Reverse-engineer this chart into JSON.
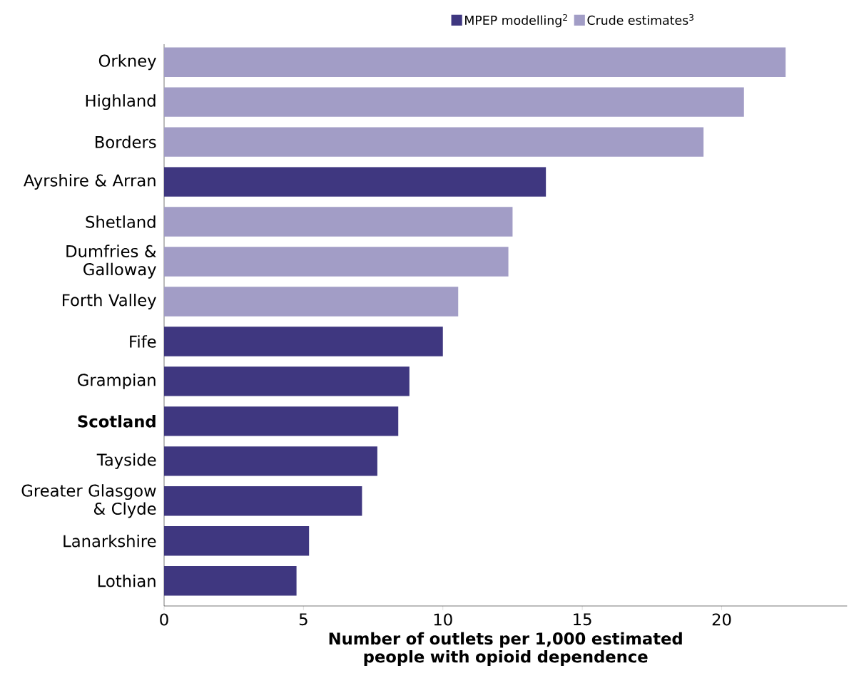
{
  "chart_data": {
    "type": "bar",
    "orientation": "horizontal",
    "categories": [
      "Orkney",
      "Highland",
      "Borders",
      "Ayrshire & Arran",
      "Shetland",
      "Dumfries & Galloway",
      "Forth Valley",
      "Fife",
      "Grampian",
      "**Scotland**",
      "Tayside",
      "Greater Glasgow & Clyde",
      "Lanarkshire",
      "Lothian"
    ],
    "series": [
      {
        "name": "MPEP modelling$^{2}$",
        "color": "#3f3780",
        "values": [
          null,
          null,
          null,
          13.7,
          null,
          null,
          null,
          10.0,
          8.8,
          8.4,
          7.65,
          7.1,
          5.2,
          4.75
        ]
      },
      {
        "name": "Crude estimates$^{3}$",
        "color": "#a29dc6",
        "values": [
          22.3,
          20.8,
          19.35,
          null,
          12.5,
          12.35,
          10.55,
          null,
          null,
          null,
          null,
          null,
          null,
          null
        ]
      }
    ],
    "xlabel": "Number of outlets per 1,000 estimated people with opioid dependence",
    "xlim": [
      0,
      24.5
    ],
    "xticks": [
      0,
      5,
      10,
      15,
      20
    ],
    "grid": false,
    "legend": "top"
  }
}
